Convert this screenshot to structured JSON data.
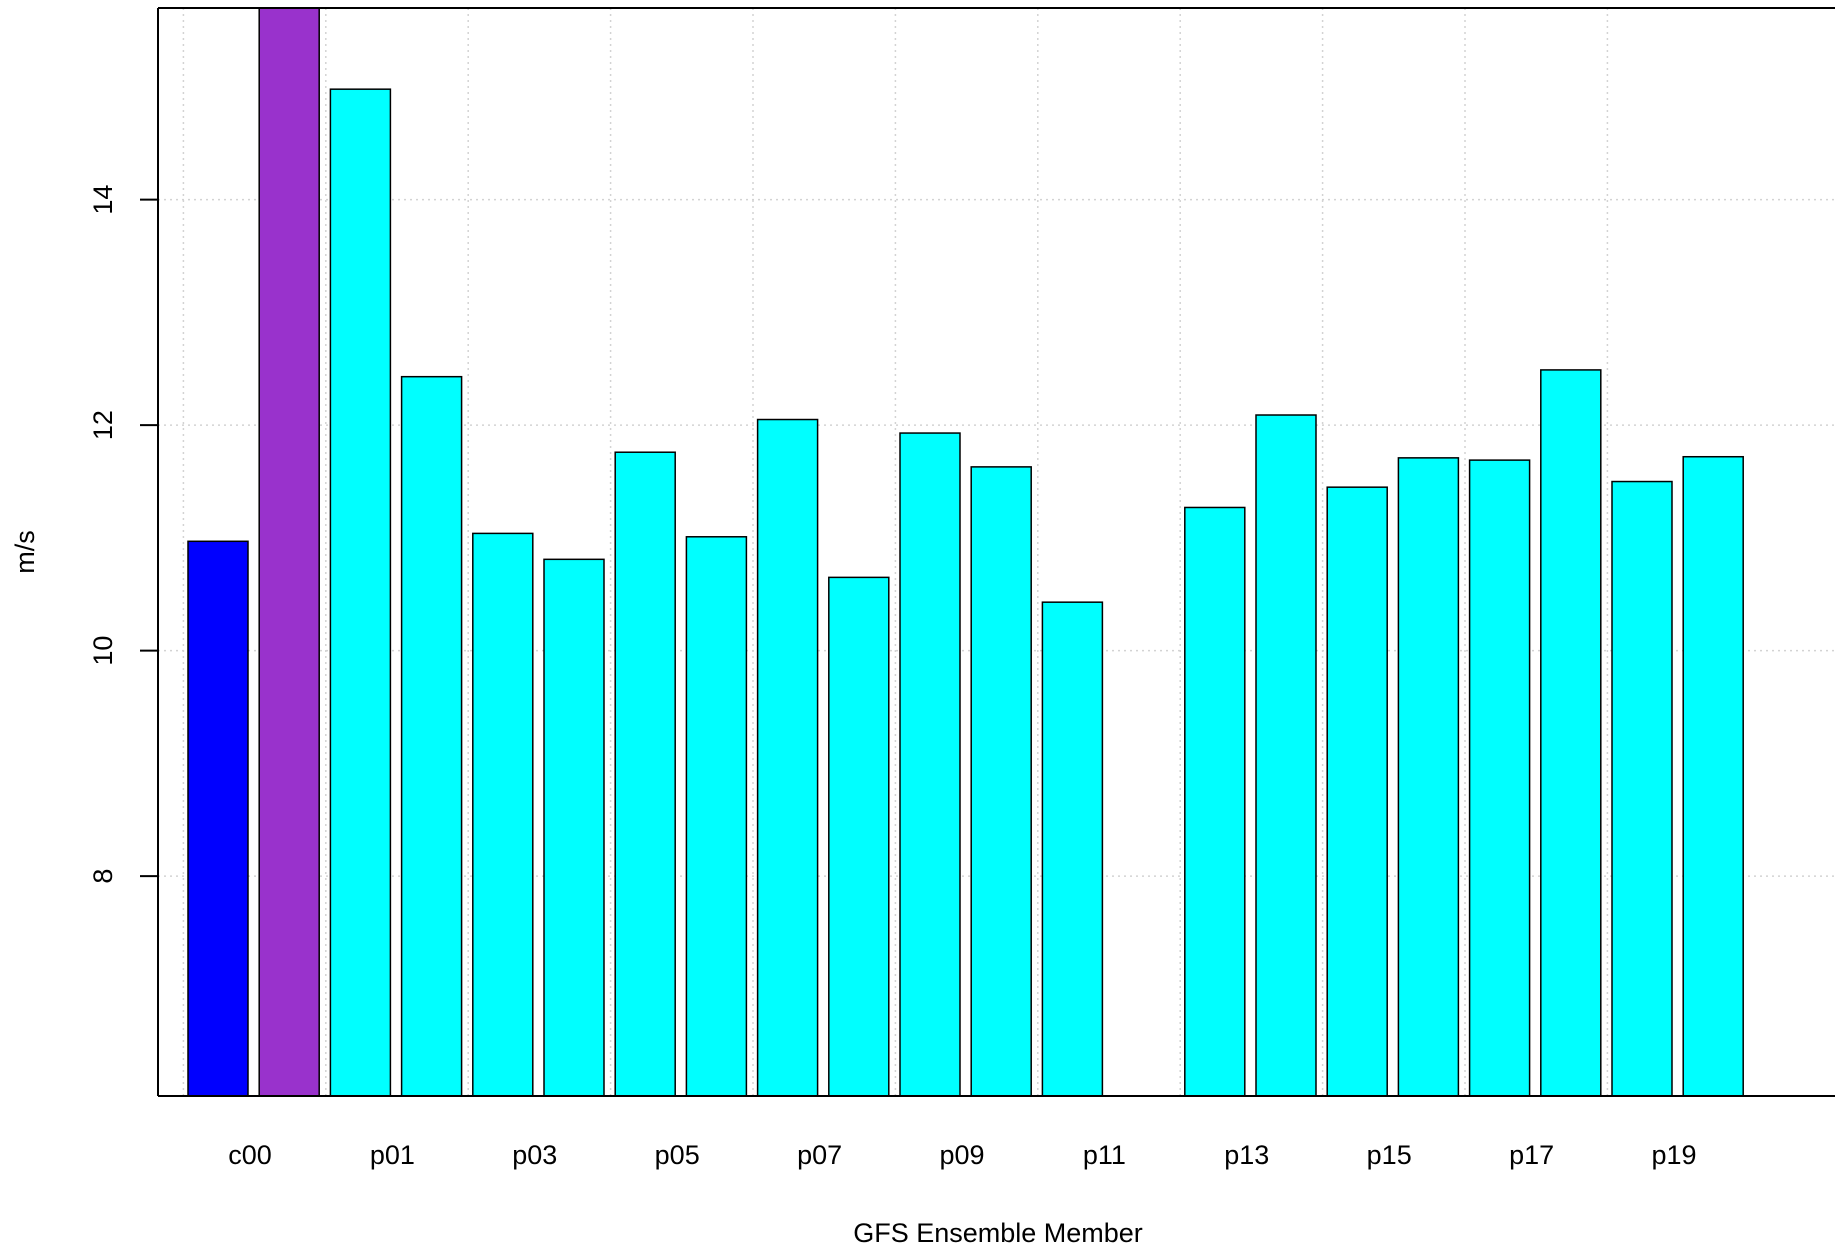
{
  "chart_data": {
    "type": "bar",
    "title": "",
    "xlabel": "GFS Ensemble Member",
    "ylabel": "m/s",
    "ylim": [
      6.05,
      15.7
    ],
    "yticks": [
      8,
      10,
      12,
      14
    ],
    "grid": true,
    "categories": [
      "c00",
      "",
      "p01",
      "p02",
      "p03",
      "p04",
      "p05",
      "p06",
      "p07",
      "p08",
      "p09",
      "p10",
      "p11",
      "p12",
      "p13",
      "p14",
      "p15",
      "p16",
      "p17",
      "p18",
      "p19",
      "p20"
    ],
    "tick_labels": [
      "c00",
      "",
      "p01",
      "",
      "p03",
      "",
      "p05",
      "",
      "p07",
      "",
      "p09",
      "",
      "p11",
      "",
      "p13",
      "",
      "p15",
      "",
      "p17",
      "",
      "p19",
      ""
    ],
    "values": [
      10.97,
      15.7,
      14.98,
      12.43,
      11.04,
      10.81,
      11.76,
      11.01,
      12.05,
      10.65,
      11.93,
      11.63,
      10.43,
      null,
      11.27,
      12.09,
      11.45,
      11.71,
      11.69,
      12.49,
      11.5,
      11.72
    ],
    "colors": [
      "#0000ff",
      "#9932cc",
      "#00ffff",
      "#00ffff",
      "#00ffff",
      "#00ffff",
      "#00ffff",
      "#00ffff",
      "#00ffff",
      "#00ffff",
      "#00ffff",
      "#00ffff",
      "#00ffff",
      "#00ffff",
      "#00ffff",
      "#00ffff",
      "#00ffff",
      "#00ffff",
      "#00ffff",
      "#00ffff",
      "#00ffff",
      "#00ffff"
    ]
  }
}
